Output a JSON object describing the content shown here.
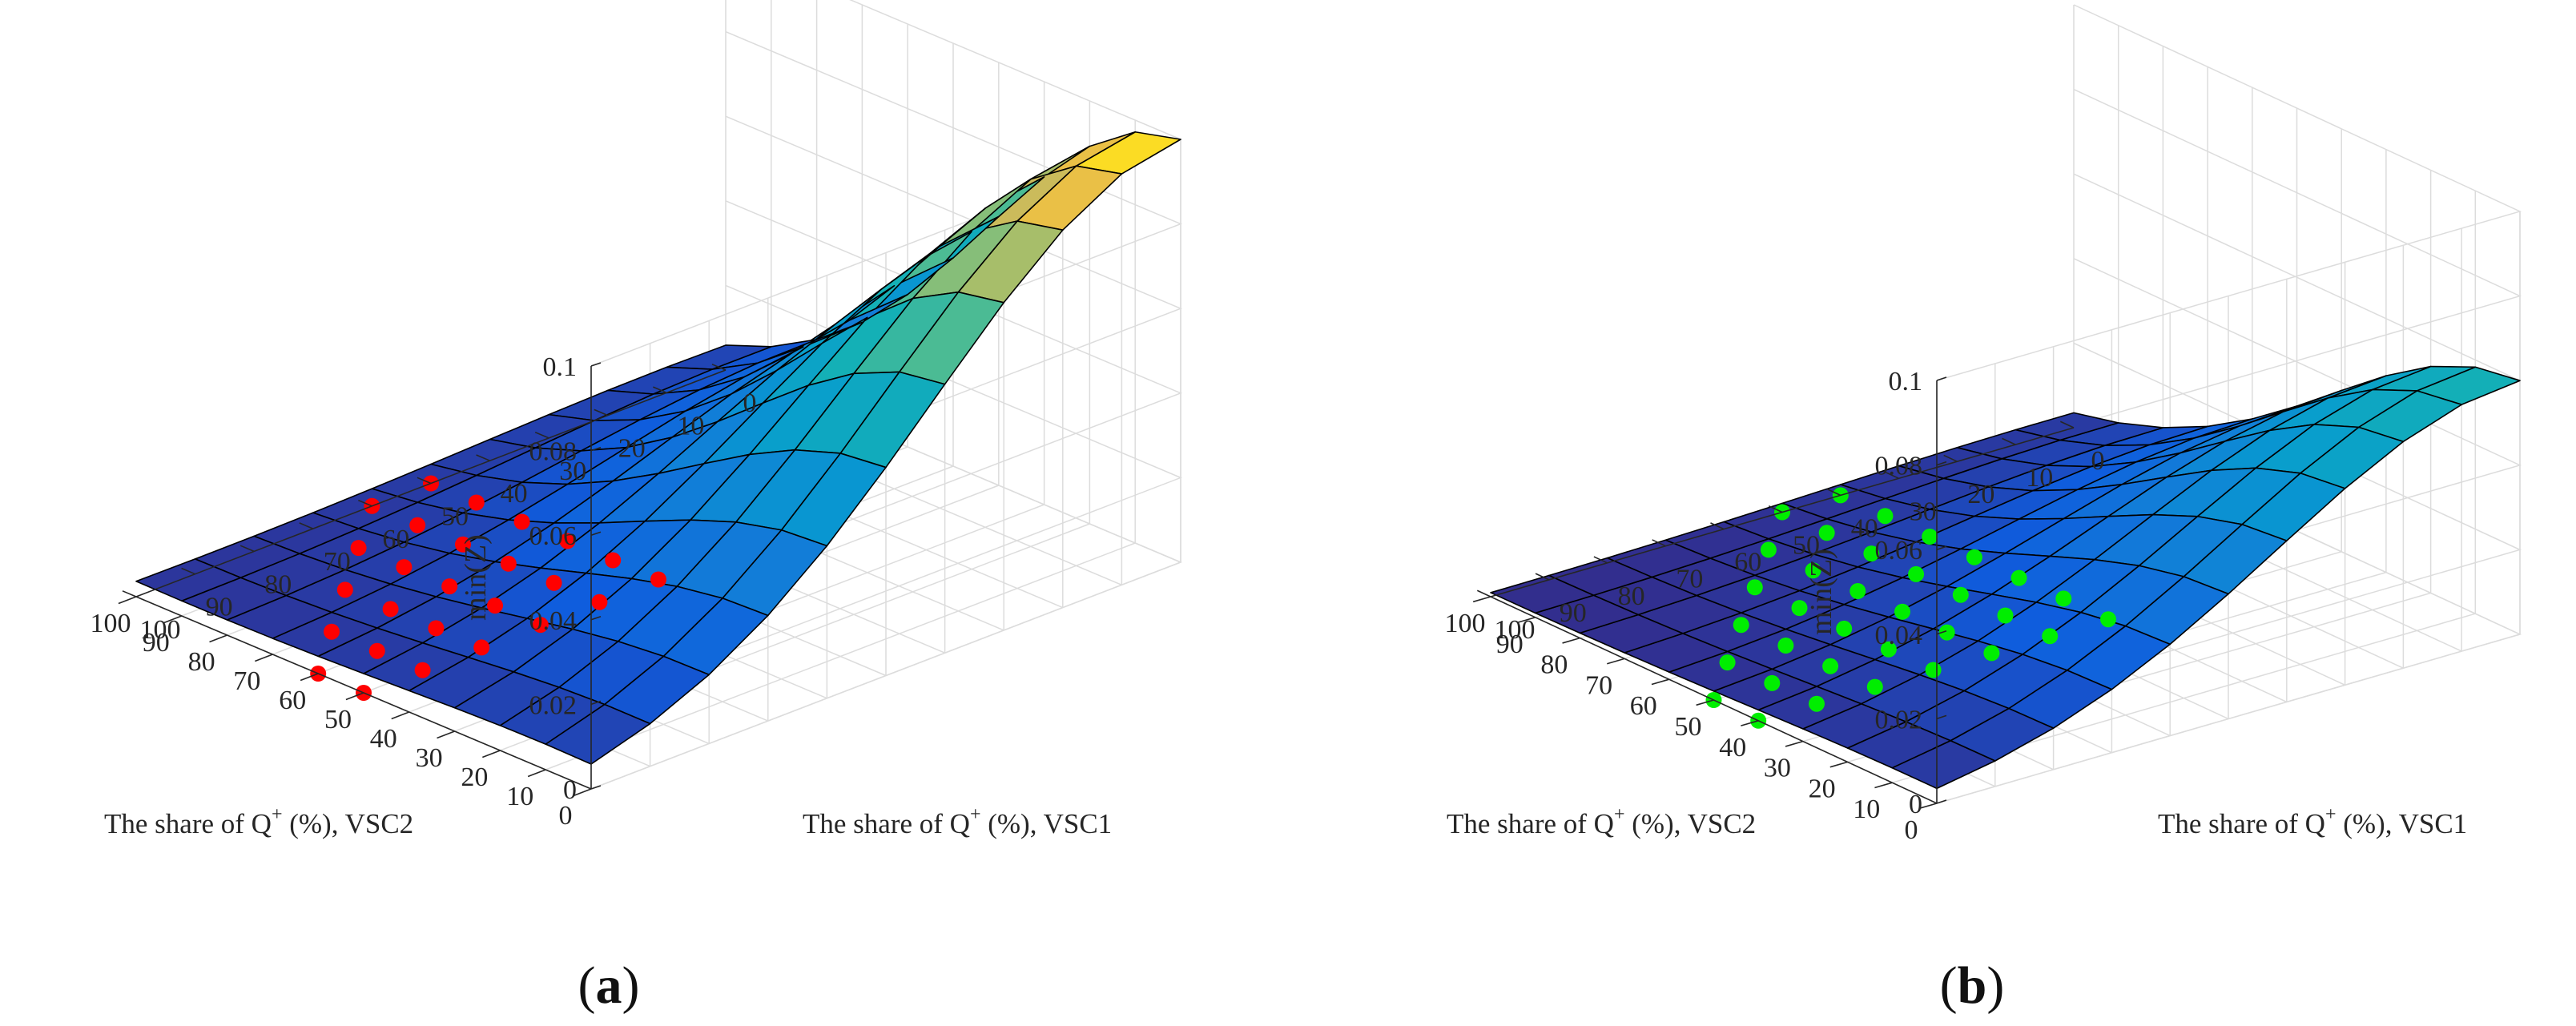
{
  "colors": {
    "marker_a": "#ff0000",
    "marker_b": "#00ee00"
  },
  "chart_data": [
    {
      "id": "a",
      "type": "surface",
      "caption_left": "(",
      "caption_letter": "a",
      "caption_right": ")",
      "zlabel": "min(Z)",
      "xlabel_pre": "The share of Q",
      "xlabel_sup": "+",
      "xlabel_post": " (%), VSC1",
      "ylabel_pre": "The share of Q",
      "ylabel_sup": "+",
      "ylabel_post": " (%), VSC2",
      "x_ticks": [
        "0",
        "10",
        "20",
        "30",
        "40",
        "50",
        "60",
        "70",
        "80",
        "90",
        "100"
      ],
      "y_ticks": [
        "0",
        "10",
        "20",
        "30",
        "40",
        "50",
        "60",
        "70",
        "80",
        "90",
        "100"
      ],
      "z_ticks": [
        "0",
        "0.02",
        "0.04",
        "0.06",
        "0.08",
        "0.1"
      ],
      "xlim": [
        0,
        100
      ],
      "ylim": [
        0,
        100
      ],
      "zlim": [
        0,
        0.1
      ],
      "grid": true,
      "colormap": "parula",
      "surface_x": [
        0,
        10,
        20,
        30,
        40,
        50,
        60,
        70,
        80,
        90,
        100
      ],
      "surface_y": [
        0,
        10,
        20,
        30,
        40,
        50,
        60,
        70,
        80,
        90,
        100
      ],
      "surface_model": {
        "type": "gaussian-like",
        "peak": 0.1,
        "peak_at": [
          0,
          0
        ],
        "edge_value_at_corners": 0.022,
        "floor": 0.0
      },
      "markers": {
        "label": "feasible points (red)",
        "points": [
          [
            50,
            50
          ],
          [
            60,
            50
          ],
          [
            70,
            50
          ],
          [
            80,
            50
          ],
          [
            90,
            50
          ],
          [
            100,
            50
          ],
          [
            50,
            60
          ],
          [
            60,
            60
          ],
          [
            70,
            60
          ],
          [
            80,
            60
          ],
          [
            90,
            60
          ],
          [
            100,
            60
          ],
          [
            50,
            70
          ],
          [
            60,
            70
          ],
          [
            70,
            70
          ],
          [
            80,
            70
          ],
          [
            90,
            70
          ],
          [
            50,
            80
          ],
          [
            60,
            80
          ],
          [
            70,
            80
          ],
          [
            80,
            80
          ],
          [
            50,
            90
          ],
          [
            60,
            90
          ],
          [
            70,
            90
          ],
          [
            50,
            100
          ],
          [
            60,
            100
          ]
        ]
      }
    },
    {
      "id": "b",
      "type": "surface",
      "caption_left": "(",
      "caption_letter": "b",
      "caption_right": ")",
      "zlabel": "min(Z)",
      "xlabel_pre": "The share of Q",
      "xlabel_sup": "+",
      "xlabel_post": " (%), VSC1",
      "ylabel_pre": "The share of Q",
      "ylabel_sup": "+",
      "ylabel_post": " (%), VSC2",
      "x_ticks": [
        "0",
        "10",
        "20",
        "30",
        "40",
        "50",
        "60",
        "70",
        "80",
        "90",
        "100"
      ],
      "y_ticks": [
        "0",
        "10",
        "20",
        "30",
        "40",
        "50",
        "60",
        "70",
        "80",
        "90",
        "100"
      ],
      "z_ticks": [
        "0",
        "0.02",
        "0.04",
        "0.06",
        "0.08",
        "0.1"
      ],
      "xlim": [
        0,
        100
      ],
      "ylim": [
        0,
        100
      ],
      "zlim": [
        0,
        0.1
      ],
      "grid": true,
      "colormap": "parula",
      "surface_x": [
        0,
        10,
        20,
        30,
        40,
        50,
        60,
        70,
        80,
        90,
        100
      ],
      "surface_y": [
        0,
        10,
        20,
        30,
        40,
        50,
        60,
        70,
        80,
        90,
        100
      ],
      "surface_model": {
        "type": "gaussian-like",
        "peak": 0.06,
        "peak_at": [
          0,
          0
        ],
        "edge_value_at_corners": 0.005,
        "floor": 0.0
      },
      "markers": {
        "label": "feasible points (green)",
        "points": [
          [
            40,
            40
          ],
          [
            50,
            40
          ],
          [
            60,
            40
          ],
          [
            70,
            40
          ],
          [
            80,
            40
          ],
          [
            90,
            40
          ],
          [
            100,
            40
          ],
          [
            40,
            50
          ],
          [
            50,
            50
          ],
          [
            60,
            50
          ],
          [
            70,
            50
          ],
          [
            80,
            50
          ],
          [
            90,
            50
          ],
          [
            100,
            50
          ],
          [
            40,
            60
          ],
          [
            50,
            60
          ],
          [
            60,
            60
          ],
          [
            70,
            60
          ],
          [
            80,
            60
          ],
          [
            90,
            60
          ],
          [
            40,
            70
          ],
          [
            50,
            70
          ],
          [
            60,
            70
          ],
          [
            70,
            70
          ],
          [
            80,
            70
          ],
          [
            40,
            80
          ],
          [
            50,
            80
          ],
          [
            60,
            80
          ],
          [
            70,
            80
          ],
          [
            40,
            90
          ],
          [
            50,
            90
          ],
          [
            60,
            90
          ],
          [
            40,
            100
          ],
          [
            50,
            100
          ]
        ]
      }
    }
  ]
}
